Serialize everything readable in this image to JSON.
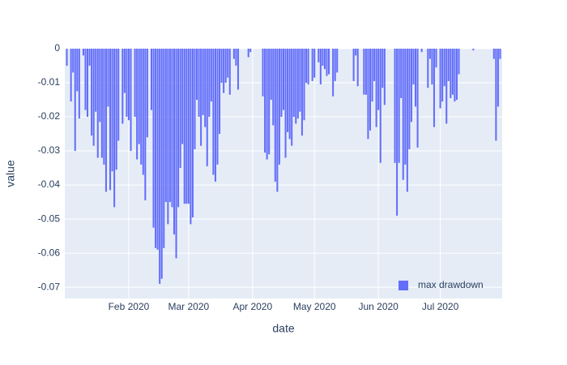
{
  "chart_data": {
    "type": "bar",
    "x_label": "date",
    "y_label": "value",
    "x": [
      "2020-01-02",
      "2020-01-03",
      "2020-01-04",
      "2020-01-05",
      "2020-01-06",
      "2020-01-07",
      "2020-01-08",
      "2020-01-09",
      "2020-01-10",
      "2020-01-11",
      "2020-01-12",
      "2020-01-13",
      "2020-01-14",
      "2020-01-15",
      "2020-01-16",
      "2020-01-17",
      "2020-01-18",
      "2020-01-19",
      "2020-01-20",
      "2020-01-21",
      "2020-01-22",
      "2020-01-23",
      "2020-01-24",
      "2020-01-25",
      "2020-01-26",
      "2020-01-27",
      "2020-01-28",
      "2020-01-29",
      "2020-01-30",
      "2020-01-31",
      "2020-02-01",
      "2020-02-02",
      "2020-02-03",
      "2020-02-04",
      "2020-02-05",
      "2020-02-06",
      "2020-02-07",
      "2020-02-08",
      "2020-02-09",
      "2020-02-10",
      "2020-02-11",
      "2020-02-12",
      "2020-02-13",
      "2020-02-14",
      "2020-02-15",
      "2020-02-16",
      "2020-02-17",
      "2020-02-18",
      "2020-02-19",
      "2020-02-20",
      "2020-02-21",
      "2020-02-22",
      "2020-02-23",
      "2020-02-24",
      "2020-02-25",
      "2020-02-26",
      "2020-02-27",
      "2020-02-28",
      "2020-02-29",
      "2020-03-01",
      "2020-03-02",
      "2020-03-03",
      "2020-03-04",
      "2020-03-05",
      "2020-03-06",
      "2020-03-07",
      "2020-03-08",
      "2020-03-09",
      "2020-03-10",
      "2020-03-11",
      "2020-03-12",
      "2020-03-13",
      "2020-03-14",
      "2020-03-15",
      "2020-03-16",
      "2020-03-17",
      "2020-03-18",
      "2020-03-19",
      "2020-03-20",
      "2020-03-21",
      "2020-03-22",
      "2020-03-23",
      "2020-03-24",
      "2020-03-25",
      "2020-03-26",
      "2020-03-27",
      "2020-03-28",
      "2020-03-29",
      "2020-03-30",
      "2020-03-31",
      "2020-04-01",
      "2020-04-02",
      "2020-04-03",
      "2020-04-04",
      "2020-04-05",
      "2020-04-06",
      "2020-04-07",
      "2020-04-08",
      "2020-04-09",
      "2020-04-10",
      "2020-04-11",
      "2020-04-12",
      "2020-04-13",
      "2020-04-14",
      "2020-04-15",
      "2020-04-16",
      "2020-04-17",
      "2020-04-18",
      "2020-04-19",
      "2020-04-20",
      "2020-04-21",
      "2020-04-22",
      "2020-04-23",
      "2020-04-24",
      "2020-04-25",
      "2020-04-26",
      "2020-04-27",
      "2020-04-28",
      "2020-04-29",
      "2020-04-30",
      "2020-05-01",
      "2020-05-02",
      "2020-05-03",
      "2020-05-04",
      "2020-05-05",
      "2020-05-06",
      "2020-05-07",
      "2020-05-08",
      "2020-05-09",
      "2020-05-10",
      "2020-05-11",
      "2020-05-12",
      "2020-05-13",
      "2020-05-14",
      "2020-05-15",
      "2020-05-16",
      "2020-05-17",
      "2020-05-18",
      "2020-05-19",
      "2020-05-20",
      "2020-05-21",
      "2020-05-22",
      "2020-05-23",
      "2020-05-24",
      "2020-05-25",
      "2020-05-26",
      "2020-05-27",
      "2020-05-28",
      "2020-05-29",
      "2020-05-30",
      "2020-05-31",
      "2020-06-01",
      "2020-06-02",
      "2020-06-03",
      "2020-06-04",
      "2020-06-05",
      "2020-06-06",
      "2020-06-07",
      "2020-06-08",
      "2020-06-09",
      "2020-06-10",
      "2020-06-11",
      "2020-06-12",
      "2020-06-13",
      "2020-06-14",
      "2020-06-15",
      "2020-06-16",
      "2020-06-17",
      "2020-06-18",
      "2020-06-19",
      "2020-06-20",
      "2020-06-21",
      "2020-06-22",
      "2020-06-23",
      "2020-06-24",
      "2020-06-25",
      "2020-06-26",
      "2020-06-27",
      "2020-06-28",
      "2020-06-29",
      "2020-06-30",
      "2020-07-01",
      "2020-07-02",
      "2020-07-03",
      "2020-07-04",
      "2020-07-05",
      "2020-07-06",
      "2020-07-07",
      "2020-07-08",
      "2020-07-09",
      "2020-07-10",
      "2020-07-11",
      "2020-07-12",
      "2020-07-13",
      "2020-07-14",
      "2020-07-15",
      "2020-07-16",
      "2020-07-17",
      "2020-07-18",
      "2020-07-19",
      "2020-07-20",
      "2020-07-21",
      "2020-07-22",
      "2020-07-23",
      "2020-07-24",
      "2020-07-25",
      "2020-07-26",
      "2020-07-27",
      "2020-07-28",
      "2020-07-29",
      "2020-07-30",
      "2020-07-31"
    ],
    "series": [
      {
        "name": "max drawdown",
        "color": "#636efa",
        "values": [
          -0.005,
          0,
          -0.0155,
          -0.007,
          -0.03,
          -0.0125,
          -0.0205,
          0,
          -0.002,
          -0.018,
          -0.02,
          -0.005,
          -0.0255,
          -0.0285,
          -0.0185,
          -0.032,
          -0.0215,
          -0.032,
          -0.034,
          -0.042,
          -0.017,
          -0.0415,
          -0.036,
          -0.0465,
          -0.0355,
          -0.027,
          0,
          -0.022,
          -0.013,
          -0.02,
          -0.021,
          -0.03,
          0,
          -0.02,
          -0.0325,
          -0.028,
          -0.034,
          -0.037,
          -0.0445,
          -0.026,
          0,
          -0.018,
          -0.0525,
          -0.0585,
          -0.059,
          -0.069,
          -0.0675,
          -0.0585,
          -0.045,
          -0.0515,
          -0.045,
          -0.0465,
          -0.0545,
          -0.0615,
          -0.0465,
          -0.035,
          -0.028,
          -0.0455,
          -0.0455,
          -0.0455,
          -0.0515,
          -0.0495,
          -0.0295,
          -0.015,
          -0.02,
          -0.0285,
          -0.0195,
          -0.023,
          -0.0345,
          -0.02,
          -0.0155,
          -0.037,
          -0.039,
          -0.034,
          -0.025,
          -0.01,
          -0.013,
          -0.01,
          -0.0085,
          -0.0135,
          0,
          -0.003,
          -0.005,
          -0.012,
          0,
          0,
          0,
          0,
          -0.0025,
          -0.001,
          0,
          0,
          0,
          0,
          0,
          -0.014,
          -0.0305,
          -0.0325,
          -0.031,
          -0.015,
          -0.0225,
          -0.039,
          -0.042,
          -0.034,
          -0.02,
          -0.018,
          -0.032,
          -0.0245,
          -0.0265,
          -0.0285,
          -0.02,
          -0.022,
          -0.0205,
          -0.0185,
          -0.0255,
          -0.021,
          -0.01,
          -0.0105,
          0,
          -0.0095,
          -0.0085,
          0,
          -0.004,
          -0.0105,
          -0.005,
          -0.006,
          -0.008,
          -0.0075,
          0,
          -0.014,
          -0.0095,
          -0.007,
          0,
          0,
          0,
          0,
          0,
          0,
          0,
          -0.0095,
          -0.002,
          -0.011,
          0,
          0,
          -0.0135,
          -0.0135,
          -0.0265,
          -0.024,
          -0.0155,
          -0.0095,
          -0.023,
          -0.018,
          -0.0335,
          -0.0115,
          -0.0165,
          0,
          0,
          0,
          0,
          -0.0335,
          -0.049,
          -0.0335,
          -0.0145,
          -0.0385,
          -0.034,
          -0.042,
          -0.0295,
          -0.0215,
          -0.0105,
          -0.017,
          -0.029,
          0,
          -0.001,
          0,
          0,
          -0.0115,
          -0.003,
          -0.0105,
          -0.023,
          -0.0055,
          0,
          -0.0175,
          -0.0155,
          -0.011,
          -0.022,
          -0.0095,
          -0.0145,
          -0.0135,
          -0.0155,
          -0.015,
          -0.0075,
          0,
          0,
          0,
          0,
          0,
          0,
          -0.0005,
          0,
          0,
          0,
          0,
          0,
          0,
          0,
          0,
          0,
          -0.003,
          -0.027,
          -0.017,
          -0.003,
          0
        ]
      }
    ],
    "xlim": [
      "2020-01-01",
      "2020-07-31"
    ],
    "xticks": [
      {
        "value": "2020-02-01",
        "label": "Feb 2020"
      },
      {
        "value": "2020-03-01",
        "label": "Mar 2020"
      },
      {
        "value": "2020-04-01",
        "label": "Apr 2020"
      },
      {
        "value": "2020-05-01",
        "label": "May 2020"
      },
      {
        "value": "2020-06-01",
        "label": "Jun 2020"
      },
      {
        "value": "2020-07-01",
        "label": "Jul 2020"
      }
    ],
    "ylim": [
      -0.0733,
      0
    ],
    "yticks": [
      0,
      -0.01,
      -0.02,
      -0.03,
      -0.04,
      -0.05,
      -0.06,
      -0.07
    ],
    "grid": true,
    "legend": "bottom right"
  }
}
